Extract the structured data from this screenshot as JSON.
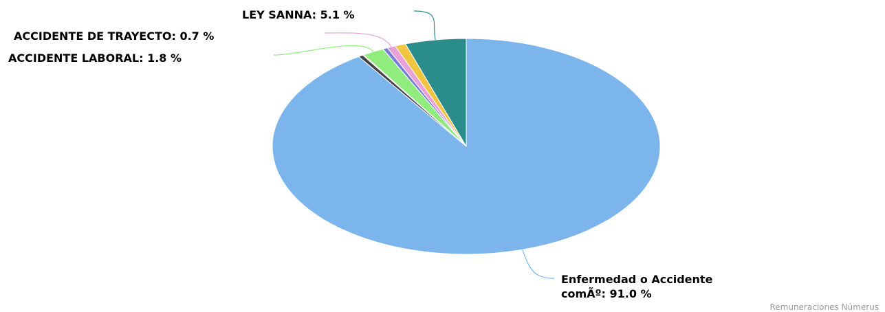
{
  "chart_data": {
    "type": "pie",
    "title": "",
    "start_angle_deg": 0,
    "direction": "counterclockwise",
    "slices": [
      {
        "name": "LEY SANNA",
        "value": 5.1,
        "label": "LEY SANNA: 5.1 %",
        "color": "#2b8c8c",
        "label_side": "left"
      },
      {
        "name": "",
        "value": 0.9,
        "label": "",
        "color": "#f0c641",
        "label_side": "none"
      },
      {
        "name": "ACCIDENTE DE TRAYECTO",
        "value": 0.7,
        "label": "ACCIDENTE DE TRAYECTO: 0.7 %",
        "color": "#e8a0d8",
        "label_side": "left"
      },
      {
        "name": "",
        "value": 0.4,
        "label": "",
        "color": "#7a7adb",
        "label_side": "none"
      },
      {
        "name": "ACCIDENTE LABORAL",
        "value": 1.8,
        "label": "ACCIDENTE LABORAL: 1.8 %",
        "color": "#90ed7d",
        "label_side": "left"
      },
      {
        "name": "",
        "value": 0.1,
        "label": "",
        "color": "#f7a35c",
        "label_side": "none"
      },
      {
        "name": "",
        "value": 0.4,
        "label": "",
        "color": "#434348",
        "label_side": "none"
      },
      {
        "name": "Enfermedad o Accidente comÃº",
        "value": 91.0,
        "label_lines": [
          "Enfermedad o Accidente",
          "comÃº: 91.0 %"
        ],
        "color": "#7cb5ec",
        "label_side": "right"
      }
    ]
  },
  "credit": {
    "text": "Remuneraciones Númerus",
    "color": "#999999"
  },
  "colors": {
    "background": "#ffffff",
    "slice_border": "#ffffff"
  }
}
